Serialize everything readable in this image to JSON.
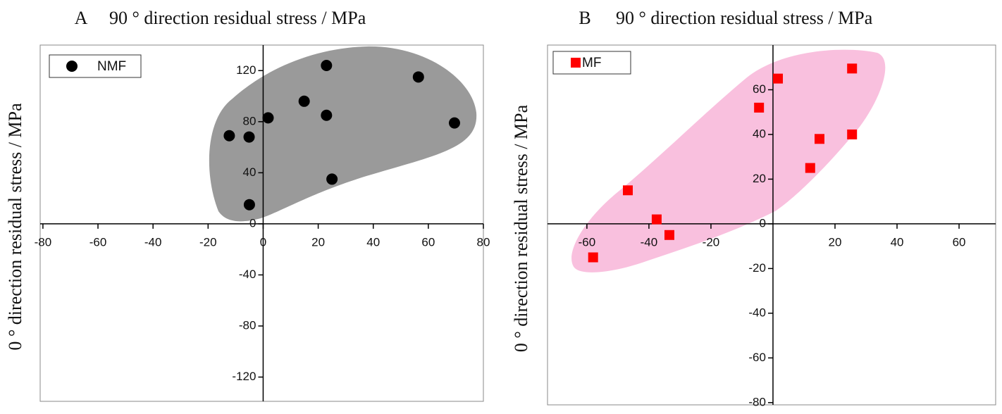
{
  "chart_data": [
    {
      "type": "scatter",
      "panel": "A",
      "title": "90 ° direction residual stress / MPa",
      "y_label": "0 ° direction residual stress / MPa",
      "xlim": [
        -81,
        80
      ],
      "ylim": [
        -139,
        140
      ],
      "xticks": [
        -80,
        -60,
        -40,
        -20,
        0,
        20,
        40,
        60,
        80
      ],
      "yticks": [
        -120,
        -80,
        -40,
        0,
        40,
        80,
        120
      ],
      "series": [
        {
          "name": "NMF",
          "color": "#000000",
          "marker": "circle",
          "x": [
            -12.3,
            -5.1,
            1.8,
            14.9,
            23,
            23,
            56.4,
            69.5,
            25,
            -5
          ],
          "y": [
            69,
            68,
            83,
            96,
            124,
            85,
            115,
            79,
            35,
            15
          ]
        }
      ]
    },
    {
      "type": "scatter",
      "panel": "B",
      "title": "90 ° direction residual stress / MPa",
      "y_label": "0 ° direction residual stress / MPa",
      "xlim": [
        -72.7,
        71.8
      ],
      "ylim": [
        -81,
        80
      ],
      "xticks": [
        -60,
        -40,
        -20,
        20,
        40,
        60
      ],
      "yticks": [
        -80,
        -60,
        -40,
        -20,
        0,
        20,
        40,
        60
      ],
      "series": [
        {
          "name": "MF",
          "color": "#ff0000",
          "marker": "square",
          "x": [
            -58,
            -46.8,
            -37.5,
            -33.4,
            -4.5,
            1.6,
            12,
            15,
            25.5,
            25.5
          ],
          "y": [
            -15,
            15,
            2,
            -5,
            52,
            65,
            25,
            38,
            69.5,
            40
          ]
        }
      ]
    }
  ]
}
